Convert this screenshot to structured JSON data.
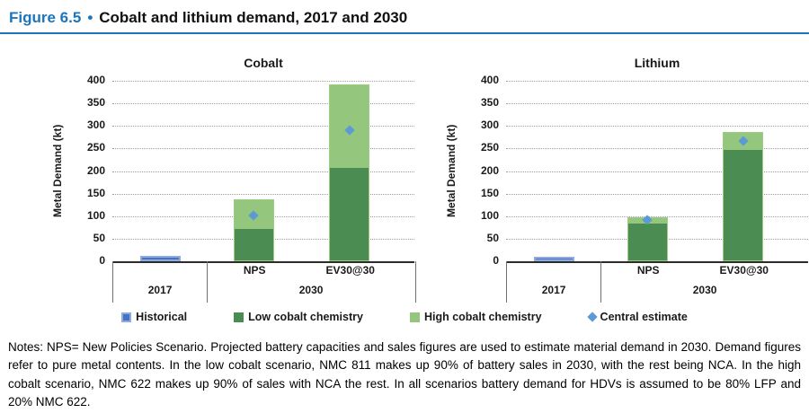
{
  "header": {
    "figure_label": "Figure 6.5",
    "bullet": "•",
    "title": "Cobalt and lithium demand, 2017 and 2030",
    "accent_color": "#1c75bc"
  },
  "colors": {
    "historical": "#4472c4",
    "historical_border": "#8faadc",
    "low_cobalt": "#4a8c52",
    "high_cobalt": "#94c77d",
    "central_estimate": "#5b9bd5",
    "gridline": "#9c9c9c",
    "axis": "#2b2b2b"
  },
  "chart_data": [
    {
      "type": "bar",
      "title": "Cobalt",
      "ylabel": "Metal Demand (kt)",
      "ylim": [
        0,
        400
      ],
      "ytick_step": 50,
      "grid": "dotted-horizontal",
      "legend_position": "bottom",
      "groups": [
        {
          "label": "2017",
          "bars": [
            {
              "label": "",
              "historical": 12
            }
          ]
        },
        {
          "label": "2030",
          "bars": [
            {
              "label": "NPS",
              "low_cobalt": 72,
              "high_cobalt": 65,
              "total": 137,
              "central_estimate": 101
            },
            {
              "label": "EV30@30",
              "low_cobalt": 208,
              "high_cobalt": 184,
              "total": 392,
              "central_estimate": 290
            }
          ]
        }
      ]
    },
    {
      "type": "bar",
      "title": "Lithium",
      "ylabel": "Metal Demand (kt)",
      "ylim": [
        0,
        400
      ],
      "ytick_step": 50,
      "grid": "dotted-horizontal",
      "legend_position": "bottom",
      "groups": [
        {
          "label": "2017",
          "bars": [
            {
              "label": "",
              "historical": 9
            }
          ]
        },
        {
          "label": "2030",
          "bars": [
            {
              "label": "NPS",
              "low_cobalt": 86,
              "high_cobalt": 12,
              "total": 98,
              "central_estimate": 92
            },
            {
              "label": "EV30@30",
              "low_cobalt": 248,
              "high_cobalt": 38,
              "total": 286,
              "central_estimate": 266
            }
          ]
        }
      ]
    }
  ],
  "legend": [
    {
      "label": "Historical",
      "swatch": "square",
      "color": "#4472c4",
      "border": "#8faadc"
    },
    {
      "label": "Low cobalt chemistry",
      "swatch": "square",
      "color": "#4a8c52"
    },
    {
      "label": "High cobalt chemistry",
      "swatch": "square",
      "color": "#94c77d"
    },
    {
      "label": "Central estimate",
      "swatch": "diamond",
      "color": "#5b9bd5"
    }
  ],
  "notes": "Notes: NPS= New Policies Scenario. Projected battery capacities and sales figures are used to estimate material demand in 2030. Demand figures refer to pure metal contents. In the low cobalt scenario, NMC 811 makes up 90% of battery sales in 2030, with the rest being NCA. In the high cobalt scenario, NMC 622 makes up 90% of sales with NCA the rest. In all scenarios battery demand for HDVs is assumed to be 80% LFP and 20% NMC 622."
}
